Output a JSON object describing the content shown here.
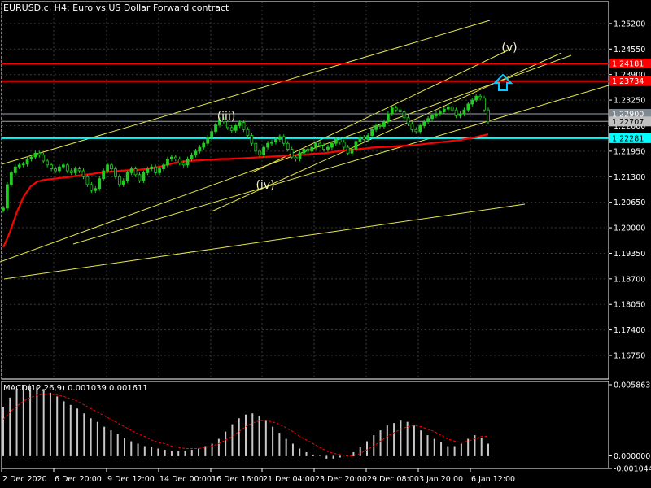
{
  "header": {
    "symbol_timeframe": "EURUSD.c, H4:",
    "description": "Euro vs US Dollar Forward contract"
  },
  "macd_label": {
    "name": "MACD(12,26,9)",
    "main": "0.001039",
    "signal": "0.001611"
  },
  "colors": {
    "background": "#000000",
    "grid": "#3a3a3a",
    "axis": "#ffffff",
    "bull_candle": "#22cc22",
    "ma_line": "#ff0000",
    "channel_line": "#e6e64a",
    "resistance_line": "#ff0000",
    "support_line": "#00ffff",
    "macd_histogram": "#c8c8c8",
    "macd_signal": "#ff0000",
    "arrow": "#00ccff"
  },
  "chart_data": {
    "type": "candlestick",
    "price_axis": {
      "ylim": [
        1.1615,
        1.2555
      ],
      "tick_labels": [
        "1.25200",
        "1.24550",
        "1.23900",
        "1.23250",
        "1.22600",
        "1.21950",
        "1.21300",
        "1.20650",
        "1.20000",
        "1.19350",
        "1.18700",
        "1.18050",
        "1.17400",
        "1.16750"
      ]
    },
    "time_axis": {
      "tick_labels": [
        "2 Dec 2020",
        "6 Dec 20:00",
        "9 Dec 12:00",
        "14 Dec 00:00",
        "16 Dec 16:00",
        "21 Dec 04:00",
        "23 Dec 20:00",
        "29 Dec 08:00",
        "3 Jan 20:00",
        "6 Jan 12:00"
      ]
    },
    "horizontal_levels": [
      {
        "price": 1.24181,
        "label": "1.24181",
        "role": "resistance"
      },
      {
        "price": 1.23734,
        "label": "1.23734",
        "role": "resistance"
      },
      {
        "price": 1.229,
        "label": "1.22900",
        "role": "level"
      },
      {
        "price": 1.22707,
        "label": "1.22707",
        "role": "bid"
      },
      {
        "price": 1.22281,
        "label": "1.22281",
        "role": "support"
      }
    ],
    "wave_labels": [
      {
        "text": "(iii)",
        "price": 1.2285
      },
      {
        "text": "(iv)",
        "price": 1.211
      },
      {
        "text": "(v)",
        "price": 1.246
      }
    ],
    "close_series": [
      1.205,
      1.211,
      1.214,
      1.2155,
      1.216,
      1.2162,
      1.2175,
      1.218,
      1.219,
      1.2185,
      1.217,
      1.216,
      1.215,
      1.2145,
      1.2155,
      1.216,
      1.2145,
      1.214,
      1.215,
      1.2145,
      1.213,
      1.211,
      1.2095,
      1.21,
      1.2125,
      1.2145,
      1.216,
      1.215,
      1.213,
      1.211,
      1.212,
      1.214,
      1.215,
      1.2135,
      1.212,
      1.214,
      1.215,
      1.2155,
      1.214,
      1.215,
      1.216,
      1.2175,
      1.218,
      1.2175,
      1.2165,
      1.216,
      1.2175,
      1.2185,
      1.2195,
      1.2205,
      1.2215,
      1.223,
      1.2245,
      1.2262,
      1.2275,
      1.227,
      1.2255,
      1.2248,
      1.226,
      1.2268,
      1.225,
      1.2235,
      1.2215,
      1.2195,
      1.2185,
      1.2205,
      1.2215,
      1.2218,
      1.2225,
      1.2232,
      1.2215,
      1.22,
      1.218,
      1.2175,
      1.219,
      1.22,
      1.2195,
      1.2205,
      1.2215,
      1.221,
      1.22,
      1.2205,
      1.2215,
      1.2225,
      1.2218,
      1.2205,
      1.219,
      1.22,
      1.222,
      1.223,
      1.2225,
      1.2235,
      1.225,
      1.226,
      1.2258,
      1.227,
      1.229,
      1.2305,
      1.23,
      1.2295,
      1.228,
      1.2265,
      1.225,
      1.2245,
      1.226,
      1.227,
      1.2278,
      1.2285,
      1.229,
      1.2295,
      1.2302,
      1.2308,
      1.23,
      1.2285,
      1.229,
      1.23,
      1.2315,
      1.2325,
      1.2335,
      1.233,
      1.23,
      1.227
    ],
    "ma_series": [
      1.195,
      1.199,
      1.204,
      1.208,
      1.2105,
      1.2118,
      1.2122,
      1.2124,
      1.2126,
      1.2128,
      1.213,
      1.2133,
      1.2135,
      1.2137,
      1.214,
      1.2142,
      1.2143,
      1.2145,
      1.2146,
      1.2147,
      1.2148,
      1.215,
      1.2152,
      1.2156,
      1.216,
      1.2165,
      1.2168,
      1.217,
      1.2171,
      1.2172,
      1.2173,
      1.2174,
      1.2175,
      1.2175,
      1.2176,
      1.2177,
      1.2178,
      1.2179,
      1.218,
      1.2181,
      1.2182,
      1.2183,
      1.2184,
      1.2185,
      1.2186,
      1.2188,
      1.2189,
      1.219,
      1.2192,
      1.2195,
      1.2197,
      1.2199,
      1.22,
      1.2202,
      1.2204,
      1.2205,
      1.2206,
      1.2207,
      1.2208,
      1.2209,
      1.221,
      1.2212,
      1.2214,
      1.2216,
      1.2218,
      1.222,
      1.2222,
      1.2224,
      1.2227,
      1.223,
      1.2234,
      1.2238
    ],
    "macd": {
      "ylim": [
        -0.001044,
        0.005863
      ],
      "tick_labels": [
        "0.005863",
        "0.000000",
        "-0.001044"
      ],
      "histogram": [
        0.004,
        0.0048,
        0.0055,
        0.0058,
        0.0058,
        0.0057,
        0.0055,
        0.0052,
        0.0049,
        0.0045,
        0.0042,
        0.0039,
        0.0035,
        0.0031,
        0.0028,
        0.0024,
        0.0021,
        0.0018,
        0.0015,
        0.0012,
        0.001,
        0.0008,
        0.0007,
        0.0006,
        0.0005,
        0.0004,
        0.0004,
        0.0004,
        0.0005,
        0.0006,
        0.0008,
        0.001,
        0.0014,
        0.002,
        0.0026,
        0.0031,
        0.0034,
        0.0035,
        0.0033,
        0.0029,
        0.0024,
        0.0019,
        0.0014,
        0.001,
        0.0006,
        0.0003,
        0.0001,
        0.0,
        -0.0002,
        -0.0002,
        -0.0001,
        0.0,
        0.0003,
        0.0007,
        0.0012,
        0.0017,
        0.0021,
        0.0025,
        0.0027,
        0.0029,
        0.0028,
        0.0025,
        0.0021,
        0.0017,
        0.0014,
        0.0011,
        0.0008,
        0.0008,
        0.001,
        0.0014,
        0.0017,
        0.0015,
        0.001
      ],
      "signal": [
        0.003,
        0.0036,
        0.0041,
        0.0045,
        0.0048,
        0.005,
        0.0051,
        0.0051,
        0.005,
        0.0049,
        0.0047,
        0.0045,
        0.0042,
        0.0039,
        0.0036,
        0.0033,
        0.003,
        0.0027,
        0.0024,
        0.0021,
        0.0018,
        0.0016,
        0.0013,
        0.0011,
        0.001,
        0.0008,
        0.0007,
        0.0006,
        0.0006,
        0.0006,
        0.0007,
        0.0008,
        0.001,
        0.0013,
        0.0016,
        0.002,
        0.0024,
        0.0027,
        0.0029,
        0.0029,
        0.0028,
        0.0026,
        0.0023,
        0.002,
        0.0016,
        0.0013,
        0.001,
        0.0007,
        0.0004,
        0.0002,
        0.0001,
        0.0,
        0.0,
        0.0002,
        0.0005,
        0.0008,
        0.0012,
        0.0016,
        0.0019,
        0.0022,
        0.0024,
        0.0025,
        0.0024,
        0.0022,
        0.002,
        0.0017,
        0.0014,
        0.0012,
        0.0011,
        0.0012,
        0.0014,
        0.0016,
        0.0016
      ]
    }
  }
}
